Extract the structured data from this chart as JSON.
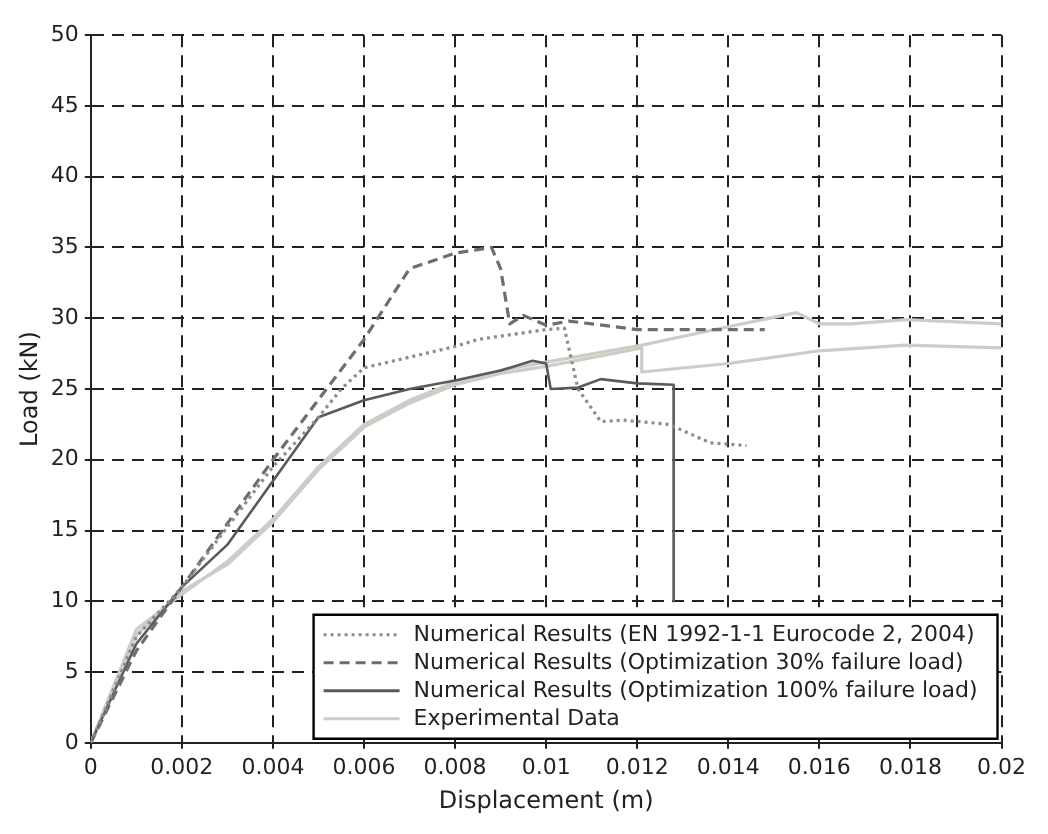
{
  "chart_data": {
    "type": "line",
    "xlabel": "Displacement (m)",
    "ylabel": "Load (kN)",
    "xlim": [
      0,
      0.02
    ],
    "xticks": [
      0,
      0.002,
      0.004,
      0.006,
      0.008,
      0.01,
      0.012,
      0.014,
      0.016,
      0.018,
      0.02
    ],
    "ylim": [
      0,
      50
    ],
    "yticks": [
      0,
      5,
      10,
      15,
      20,
      25,
      30,
      35,
      40,
      45,
      50
    ],
    "grid": true,
    "legend": "bottom right",
    "marker": "none",
    "series": [
      {
        "name": "Numerical Results (EN 1992-1-1 Eurocode 2, 2004)",
        "color": "#8c8c8c",
        "line_style": "dotted",
        "x": [
          0,
          0.001,
          0.002,
          0.004,
          0.005,
          0.0055,
          0.006,
          0.008,
          0.0085,
          0.01,
          0.0104,
          0.0107,
          0.0112,
          0.0117,
          0.0127,
          0.0136,
          0.0144
        ],
        "values": [
          0,
          7.5,
          11,
          19.5,
          23,
          25,
          26.5,
          28,
          28.5,
          29.2,
          29.3,
          25,
          22.7,
          22.8,
          22.5,
          21.2,
          21
        ]
      },
      {
        "name": "Numerical Results (Optimization 30% failure load)",
        "color": "#6e6e6e",
        "line_style": "dashed",
        "x": [
          0,
          0.001,
          0.002,
          0.004,
          0.006,
          0.007,
          0.008,
          0.0088,
          0.009,
          0.0092,
          0.0095,
          0.01,
          0.0105,
          0.012,
          0.0148
        ],
        "values": [
          0,
          6.5,
          11,
          20,
          28.5,
          33.5,
          34.6,
          35,
          33.5,
          29.6,
          30.2,
          29.5,
          29.8,
          29.2,
          29.2
        ]
      },
      {
        "name": "Numerical Results (Optimization 100% failure load)",
        "color": "#5a5a5a",
        "line_style": "solid",
        "x": [
          0,
          0.001,
          0.002,
          0.003,
          0.004,
          0.005,
          0.006,
          0.007,
          0.008,
          0.009,
          0.0097,
          0.01,
          0.0101,
          0.0107,
          0.0112,
          0.012,
          0.0128,
          0.0128
        ],
        "values": [
          0,
          7,
          11,
          14,
          18.5,
          23,
          24.2,
          25,
          25.6,
          26.3,
          27,
          26.8,
          25,
          25.1,
          25.7,
          25.4,
          25.3,
          10
        ]
      },
      {
        "name": "Experimental Data",
        "color": "#cfcbc6",
        "line_style": "solid",
        "x": [
          0,
          0.001,
          0.002,
          0.003,
          0.004,
          0.005,
          0.006,
          0.007,
          0.008,
          0.009,
          0.01,
          0.0121,
          0.014,
          0.0155,
          0.016,
          0.0167,
          0.0179,
          0.02
        ],
        "values": [
          0,
          8,
          10.5,
          12.8,
          15.8,
          19.5,
          22.5,
          24.2,
          25.5,
          26.3,
          26.9,
          28.1,
          29.4,
          30.4,
          29.6,
          29.6,
          29.9,
          29.6
        ]
      },
      {
        "color": "#cfcbc6",
        "line_style": "solid",
        "x": [
          0,
          0.001,
          0.002,
          0.003,
          0.004,
          0.005,
          0.006,
          0.007,
          0.008,
          0.009,
          0.01,
          0.0121,
          0.0121,
          0.014,
          0.016,
          0.0179,
          0.02
        ],
        "values": [
          0,
          7.6,
          10.7,
          12.6,
          15.6,
          19.3,
          22.3,
          24,
          25.3,
          26.1,
          26.6,
          27.9,
          26.2,
          26.8,
          27.7,
          28.1,
          27.9
        ]
      }
    ]
  }
}
